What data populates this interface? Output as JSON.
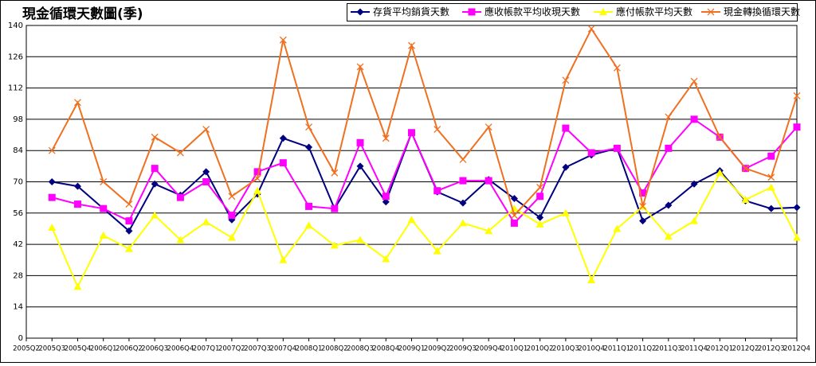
{
  "chart_data": {
    "type": "line",
    "title": "現金循環天數圖(季)",
    "categories": [
      "2005Q2",
      "2005Q3",
      "2005Q4",
      "2006Q1",
      "2006Q2",
      "2006Q3",
      "2006Q4",
      "2007Q1",
      "2007Q2",
      "2007Q3",
      "2007Q4",
      "2008Q1",
      "2008Q2",
      "2008Q3",
      "2008Q4",
      "2009Q1",
      "2009Q2",
      "2009Q3",
      "2009Q4",
      "2010Q1",
      "2010Q2",
      "2010Q3",
      "2010Q4",
      "2011Q1",
      "2011Q2",
      "2011Q3",
      "2011Q4",
      "2012Q1",
      "2012Q2",
      "2012Q3",
      "2012Q4"
    ],
    "series": [
      {
        "name": "存貨平均銷貨天數",
        "color": "#000080",
        "marker": "diamond",
        "values": [
          null,
          70,
          68,
          58,
          48,
          69,
          64,
          74.5,
          53,
          64.5,
          89.5,
          85.5,
          58,
          77,
          61,
          92,
          65.5,
          60.5,
          71,
          62.5,
          54,
          76.5,
          82,
          85,
          52.5,
          59.5,
          69,
          75,
          61.5,
          58,
          58.5
        ]
      },
      {
        "name": "應收帳款平均收現天數",
        "color": "#ff00ff",
        "marker": "square",
        "values": [
          null,
          63,
          60,
          58,
          52.5,
          76,
          63,
          70,
          55,
          74.5,
          78.5,
          59,
          58,
          87.5,
          63.5,
          92,
          66,
          70.5,
          70.5,
          51.5,
          63.5,
          94,
          83,
          85,
          65,
          85,
          98,
          90,
          76,
          81.5,
          94.5
        ]
      },
      {
        "name": "應付帳款平均天數",
        "color": "#ffff00",
        "marker": "triangle",
        "values": [
          null,
          49.5,
          23,
          46,
          40,
          55,
          44,
          52,
          45,
          66,
          35,
          50.5,
          41.5,
          44,
          35.5,
          53,
          39,
          51.5,
          48,
          58,
          51,
          56,
          26,
          49,
          59,
          45.5,
          52.5,
          74,
          62,
          67.5,
          45
        ]
      },
      {
        "name": "現金轉換循環天數",
        "color": "#f07020",
        "marker": "x",
        "values": [
          null,
          84,
          105.5,
          70,
          60,
          90,
          83,
          93.5,
          63.5,
          71.5,
          133.5,
          94.5,
          74,
          121.5,
          89.5,
          131,
          93.5,
          80,
          94.5,
          55,
          67.5,
          115.5,
          138.5,
          121,
          59,
          99,
          115,
          90,
          76,
          72,
          108.5
        ]
      }
    ],
    "ylim": [
      0,
      140
    ],
    "yticks": [
      0,
      14,
      28,
      42,
      56,
      70,
      84,
      98,
      112,
      126,
      140
    ],
    "grid": true
  }
}
